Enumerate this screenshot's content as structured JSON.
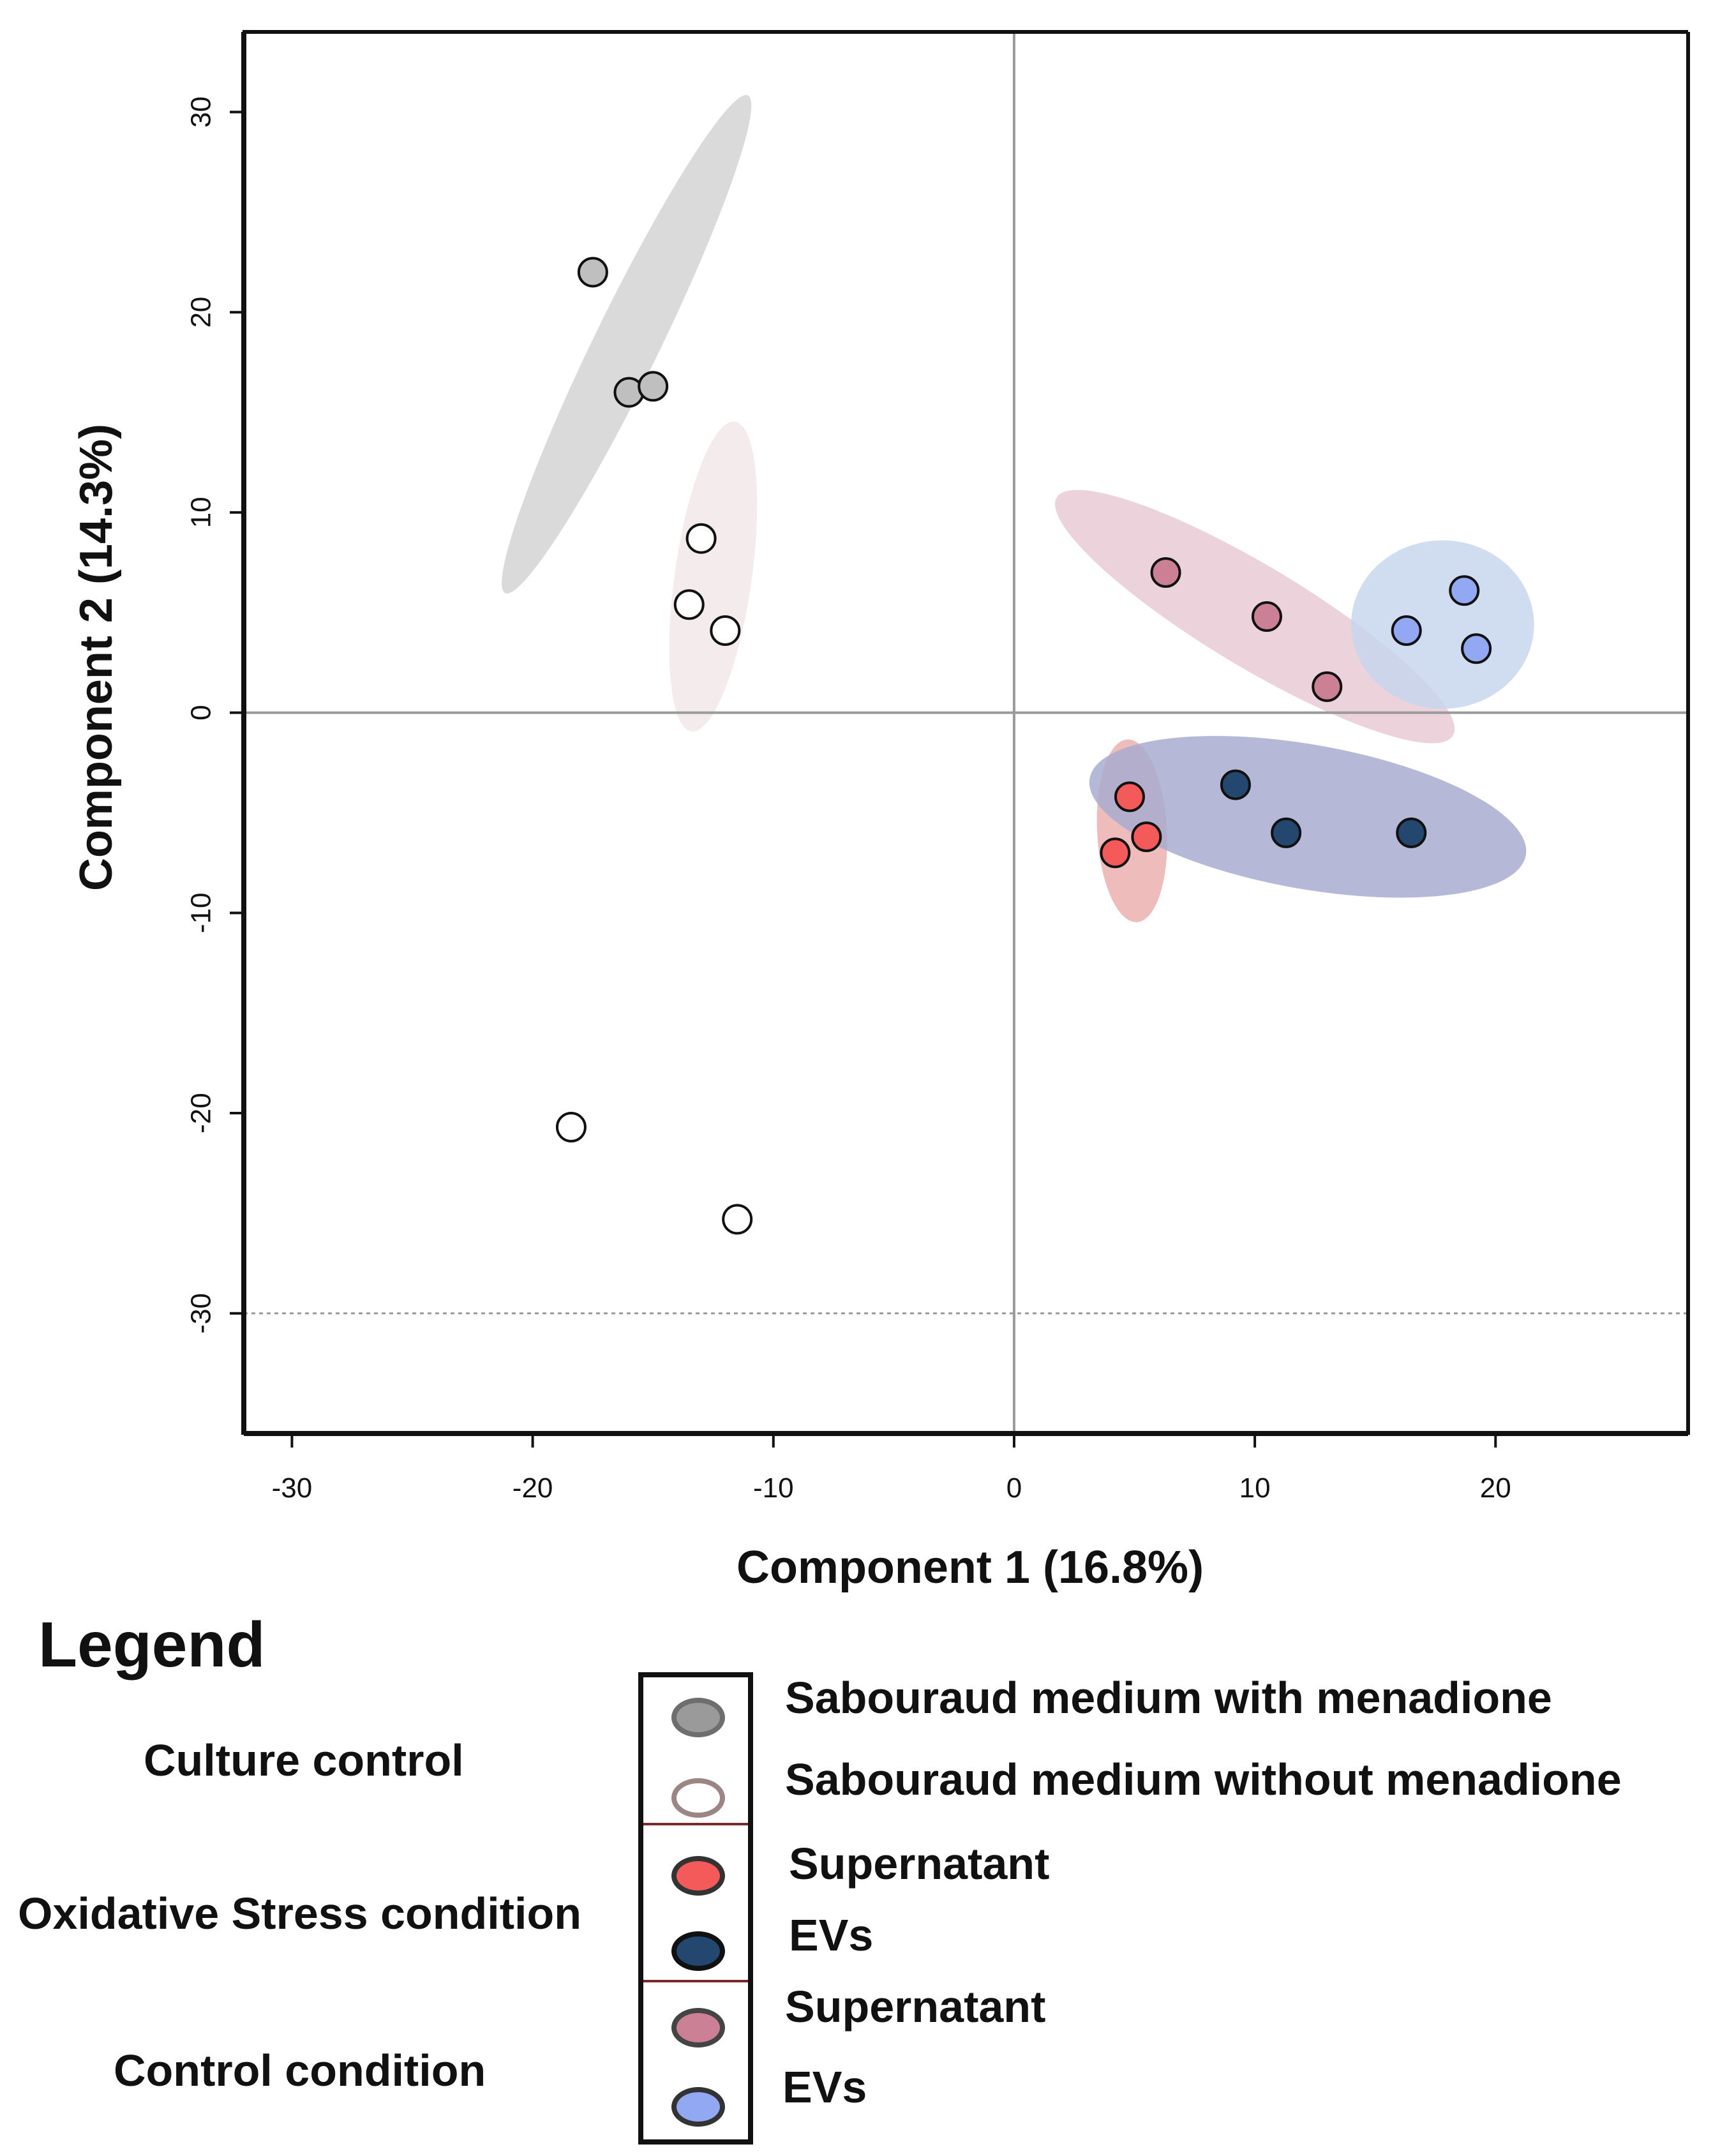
{
  "chart_data": {
    "type": "scatter",
    "xlabel": "Component 1 (16.8%)",
    "ylabel": "Component 2 (14.3%)",
    "xlim": [
      -32,
      28
    ],
    "ylim": [
      -36,
      34
    ],
    "xticks": [
      -30,
      -20,
      -10,
      0,
      10,
      20
    ],
    "yticks": [
      30,
      20,
      10,
      0,
      -10,
      -20,
      -30
    ],
    "reference_lines": {
      "x": 0,
      "y": 0,
      "dotted_y": -30
    },
    "series": [
      {
        "name": "Sabouraud medium with menadione",
        "color": "#bfbfbf",
        "ellipse_color": "#d4d4d4",
        "points": [
          [
            -17.5,
            22
          ],
          [
            -16,
            16
          ],
          [
            -15,
            16.3
          ]
        ]
      },
      {
        "name": "Sabouraud medium without menadione",
        "color": "#ffffff",
        "ellipse_color": "#f2e9e9",
        "points": [
          [
            -13,
            8.7
          ],
          [
            -13.5,
            5.4
          ],
          [
            -12,
            4.1
          ],
          [
            -18.4,
            -20.7
          ],
          [
            -11.5,
            -25.3
          ]
        ]
      },
      {
        "name": "Supernatant (oxidative stress)",
        "color": "#f55a5a",
        "ellipse_color": "#ecb0b0",
        "points": [
          [
            4.8,
            -4.2
          ],
          [
            5.5,
            -6.2
          ],
          [
            4.2,
            -7
          ]
        ]
      },
      {
        "name": "EVs (oxidative stress)",
        "color": "#23476e",
        "ellipse_color": "#a9abd0",
        "points": [
          [
            9.2,
            -3.6
          ],
          [
            11.3,
            -6
          ],
          [
            16.5,
            -6
          ]
        ]
      },
      {
        "name": "Supernatant (control)",
        "color": "#cc8095",
        "ellipse_color": "#e9cad5",
        "points": [
          [
            6.3,
            7
          ],
          [
            10.5,
            4.8
          ],
          [
            13,
            1.3
          ]
        ]
      },
      {
        "name": "EVs (control)",
        "color": "#93a8f2",
        "ellipse_color": "#c8d6ec",
        "points": [
          [
            18.7,
            6.1
          ],
          [
            16.3,
            4.1
          ],
          [
            19.2,
            3.2
          ]
        ]
      }
    ],
    "ellipses": [
      {
        "series": "Sabouraud medium with menadione",
        "cx": -16.1,
        "cy": 18.4,
        "rx": 11.5,
        "ry": 1.35,
        "angle_deg": 64
      },
      {
        "series": "Sabouraud medium without menadione",
        "cx": -12.5,
        "cy": 6.8,
        "rx": 6.5,
        "ry": 1.6,
        "angle_deg": 82
      },
      {
        "series": "Supernatant (oxidative stress)",
        "cx": 4.9,
        "cy": -5.9,
        "rx": 3.8,
        "ry": 1.45,
        "angle_deg": 93
      },
      {
        "series": "EVs (oxidative stress)",
        "cx": 12.2,
        "cy": -5.2,
        "rx": 9.2,
        "ry": 3.0,
        "angle_deg": -10
      },
      {
        "series": "Supernatant (control)",
        "cx": 10,
        "cy": 4.8,
        "rx": 9.6,
        "ry": 2.1,
        "angle_deg": -31
      },
      {
        "series": "EVs (control)",
        "cx": 17.8,
        "cy": 4.4,
        "rx": 3.8,
        "ry": 3.5,
        "angle_deg": 0
      }
    ]
  },
  "legend": {
    "title": "Legend",
    "groups": [
      {
        "label": "Culture control"
      },
      {
        "label": "Oxidative Stress condition"
      },
      {
        "label": "Control condition"
      }
    ],
    "items": [
      {
        "label": "Sabouraud medium with menadione",
        "fill": "#9a9a9a",
        "stroke": "#6e6e6e"
      },
      {
        "label": "Sabouraud medium without menadione",
        "fill": "#ffffff",
        "stroke": "#9b8585"
      },
      {
        "label": "Supernatant",
        "fill": "#f55a5a",
        "stroke": "#333333"
      },
      {
        "label": "EVs",
        "fill": "#23476e",
        "stroke": "#111111"
      },
      {
        "label": "Supernatant",
        "fill": "#cc8095",
        "stroke": "#444444"
      },
      {
        "label": "EVs",
        "fill": "#93a8f2",
        "stroke": "#333333"
      }
    ]
  }
}
